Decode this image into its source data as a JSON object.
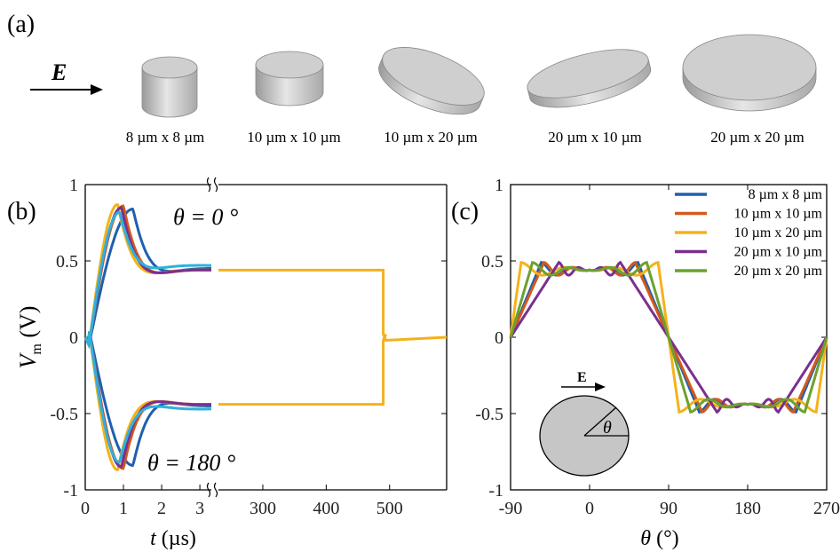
{
  "panel_a": {
    "label": "(a)",
    "field_label": "E",
    "shapes": [
      {
        "caption": "8 µm x 8 µm"
      },
      {
        "caption": "10 µm x 10 µm"
      },
      {
        "caption": "10 µm x 20 µm"
      },
      {
        "caption": "20 µm x 10 µm"
      },
      {
        "caption": "20 µm x 20 µm"
      }
    ]
  },
  "panel_b": {
    "label": "(b)",
    "ann_top": "θ = 0 °",
    "ann_bottom": "θ = 180 °"
  },
  "panel_c": {
    "label": "(c)",
    "inset_field": "E",
    "inset_angle": "θ"
  },
  "colors": {
    "8x8": "#1f5fae",
    "10x10": "#d35a1c",
    "10x20": "#f4b21a",
    "20x10": "#7b2f8f",
    "20x20": "#6ca12f",
    "cyan": "#2eb1dd",
    "inset_fill": "#c6c6c6"
  },
  "chart_data": [
    {
      "type": "line",
      "panel": "b",
      "xlabel_var": "t",
      "xlabel_unit": " (µs)",
      "ylabel_var": "V",
      "ylabel_sub": "m",
      "ylabel_unit": " (V)",
      "ylim": [
        -1,
        1
      ],
      "yticks": [
        "1",
        "0.5",
        "0",
        "-0.5",
        "-1"
      ],
      "yticks_values": [
        1,
        0.5,
        0,
        -0.5,
        -1
      ],
      "x_segment1_ticks": [
        "0",
        "1",
        "2",
        "3"
      ],
      "x_segment2_ticks": [
        "300",
        "400",
        "500"
      ],
      "x_segment1_range": [
        0,
        3.3
      ],
      "x_segment2_range": [
        230,
        590
      ],
      "axis_break": true,
      "series": [
        {
          "color_key": "8x8",
          "peak_t": 1.25,
          "peak_v": 0.84,
          "plateau": 0.45
        },
        {
          "color_key": "10x10",
          "peak_t": 1.0,
          "peak_v": 0.86,
          "plateau": 0.44
        },
        {
          "color_key": "10x20",
          "peak_t": 0.85,
          "peak_v": 0.87,
          "plateau": 0.44
        },
        {
          "color_key": "20x10",
          "peak_t": 0.95,
          "peak_v": 0.85,
          "plateau": 0.44
        },
        {
          "color_key": "cyan",
          "peak_t": 0.9,
          "peak_v": 0.82,
          "plateau": 0.47
        }
      ],
      "pulse_end_us": 490,
      "plateau_top": 0.44,
      "plateau_bottom": -0.44
    },
    {
      "type": "line",
      "panel": "c",
      "xlabel_var": "θ",
      "xlabel_unit": " (°)",
      "xlim": [
        -90,
        270
      ],
      "xticks": [
        "-90",
        "0",
        "90",
        "180",
        "270"
      ],
      "xticks_values": [
        -90,
        0,
        90,
        180,
        270
      ],
      "ylim": [
        -1,
        1
      ],
      "yticks": [
        "1",
        "0.5",
        "0",
        "-0.5",
        "-1"
      ],
      "yticks_values": [
        1,
        0.5,
        0,
        -0.5,
        -1
      ],
      "legend_position": "top-right",
      "series": [
        {
          "name": "8 µm x 8 µm",
          "color_key": "8x8",
          "sat_angle": 55
        },
        {
          "name": "10 µm x 10 µm",
          "color_key": "10x10",
          "sat_angle": 52
        },
        {
          "name": "10 µm x 20 µm",
          "color_key": "10x20",
          "sat_angle": 78
        },
        {
          "name": "20 µm x 10 µm",
          "color_key": "20x10",
          "sat_angle": 35
        },
        {
          "name": "20 µm x 20 µm",
          "color_key": "20x20",
          "sat_angle": 65
        }
      ],
      "plateau": 0.44
    }
  ]
}
